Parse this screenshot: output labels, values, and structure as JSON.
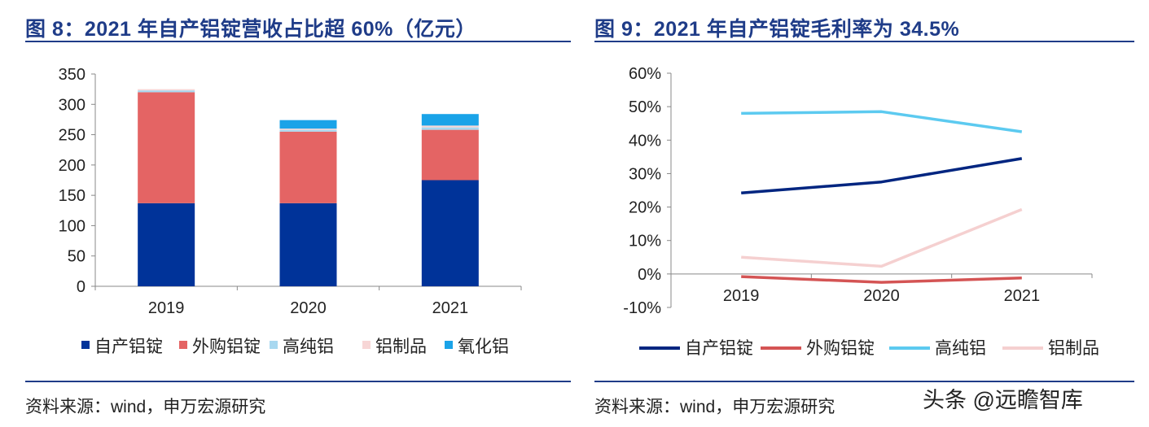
{
  "left": {
    "title": "图 8：2021 年自产铝锭营收占比超 60%（亿元）",
    "source": "资料来源：wind，申万宏源研究"
  },
  "right": {
    "title": "图 9：2021 年自产铝锭毛利率为 34.5%",
    "source": "资料来源：wind，申万宏源研究"
  },
  "watermark": "头条 @远瞻智库",
  "chart_data": [
    {
      "type": "bar",
      "stacked": true,
      "title": "图 8：2021 年自产铝锭营收占比超 60%（亿元）",
      "categories": [
        "2019",
        "2020",
        "2021"
      ],
      "series": [
        {
          "name": "自产铝锭",
          "color": "#003399",
          "values": [
            137,
            137,
            175
          ]
        },
        {
          "name": "外购铝锭",
          "color": "#e46464",
          "values": [
            183,
            118,
            83
          ]
        },
        {
          "name": "高纯铝",
          "color": "#a8d8f0",
          "values": [
            3,
            3,
            4
          ]
        },
        {
          "name": "铝制品",
          "color": "#f7d6d6",
          "values": [
            2,
            2,
            3
          ]
        },
        {
          "name": "氧化铝",
          "color": "#1aa3e8",
          "values": [
            0,
            14,
            19
          ]
        }
      ],
      "yticks": [
        "0",
        "50",
        "100",
        "150",
        "200",
        "250",
        "300",
        "350"
      ],
      "ylim": [
        0,
        350
      ],
      "legend_position": "bottom"
    },
    {
      "type": "line",
      "title": "图 9：2021 年自产铝锭毛利率为 34.5%",
      "categories": [
        "2019",
        "2020",
        "2021"
      ],
      "series": [
        {
          "name": "自产铝锭",
          "color": "#002580",
          "values": [
            24.2,
            27.5,
            34.5
          ]
        },
        {
          "name": "外购铝锭",
          "color": "#d45454",
          "values": [
            -0.8,
            -2.5,
            -1.2
          ]
        },
        {
          "name": "高纯铝",
          "color": "#5ccaf0",
          "values": [
            48,
            48.5,
            42.5
          ]
        },
        {
          "name": "铝制品",
          "color": "#f5d0d0",
          "values": [
            5,
            2.3,
            19.3
          ]
        }
      ],
      "yticks": [
        "-10%",
        "0%",
        "10%",
        "20%",
        "30%",
        "40%",
        "50%",
        "60%"
      ],
      "ylim": [
        -10,
        60
      ],
      "legend_position": "bottom"
    }
  ]
}
